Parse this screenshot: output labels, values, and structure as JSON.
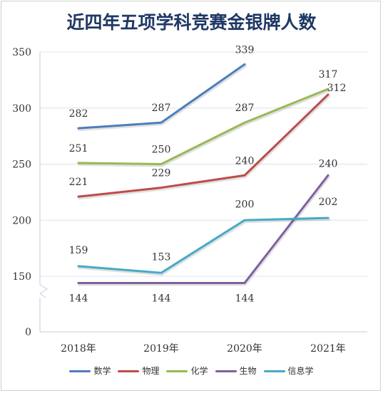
{
  "chart_data": {
    "type": "line",
    "title": "近四年五项学科竞赛金银牌人数",
    "categories": [
      "2018年",
      "2019年",
      "2020年",
      "2021年"
    ],
    "y_ticks": [
      "0",
      "150",
      "200",
      "250",
      "300",
      "350"
    ],
    "axis_break": true,
    "grid": true,
    "legend_position": "bottom",
    "series": [
      {
        "name": "数学",
        "color": "#4a7ebb",
        "values": [
          282,
          287,
          339,
          null
        ]
      },
      {
        "name": "物理",
        "color": "#be4b48",
        "values": [
          221,
          229,
          240,
          312
        ]
      },
      {
        "name": "化学",
        "color": "#98b954",
        "values": [
          251,
          250,
          287,
          317
        ]
      },
      {
        "name": "生物",
        "color": "#7d60a0",
        "values": [
          144,
          144,
          144,
          240
        ]
      },
      {
        "name": "信息学",
        "color": "#46aac5",
        "values": [
          159,
          153,
          200,
          202
        ]
      }
    ]
  }
}
